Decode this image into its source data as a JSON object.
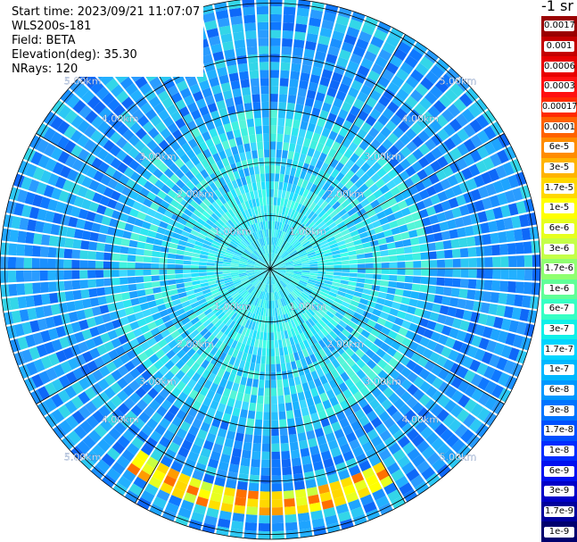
{
  "info": {
    "start_time": "Start time: 2023/09/21 11:07:07",
    "instrument": "WLS200s-181",
    "field": "Field: BETA",
    "elevation": "Elevation(deg): 35.30",
    "nrays": "NRays: 120"
  },
  "colorbar": {
    "unit": "-1 sr",
    "labels": [
      "0.0017",
      "0.001",
      "0.0006",
      "0.0003",
      "0.00017",
      "0.0001",
      "6e-5",
      "3e-5",
      "1.7e-5",
      "1e-5",
      "6e-6",
      "3e-6",
      "1.7e-6",
      "1e-6",
      "6e-7",
      "3e-7",
      "1.7e-7",
      "1e-7",
      "6e-8",
      "3e-8",
      "1.7e-8",
      "1e-8",
      "6e-9",
      "3e-9",
      "1.7e-9",
      "1e-9"
    ],
    "colors": [
      "#9a0000",
      "#c40000",
      "#e80000",
      "#ff1010",
      "#ff2a00",
      "#ff6200",
      "#ff8c00",
      "#ffb400",
      "#ffd800",
      "#ffff00",
      "#e6ff1e",
      "#c4ff48",
      "#90ff70",
      "#60ff98",
      "#36ffc4",
      "#10f0e8",
      "#00d4ff",
      "#00b8ff",
      "#0098ff",
      "#0074ff",
      "#0050ff",
      "#002cff",
      "#0010f0",
      "#0000c8",
      "#00009c",
      "#00006e"
    ]
  },
  "range_labels": [
    "1.00km",
    "2.00km",
    "3.00km",
    "4.00km",
    "5.00km"
  ],
  "chart_data": {
    "type": "heatmap",
    "title": "",
    "field": "BETA",
    "elevation_deg": 35.3,
    "nrays": 120,
    "range_rings_km": [
      1,
      2,
      3,
      4,
      5
    ],
    "max_range_km": 5.1,
    "background_level_near": "1.7e-7",
    "background_level_far": "1e-8",
    "feature": {
      "description_level": "6e-6",
      "azimuth_deg_range": [
        150,
        215
      ],
      "range_km": [
        4.2,
        4.6
      ]
    }
  }
}
